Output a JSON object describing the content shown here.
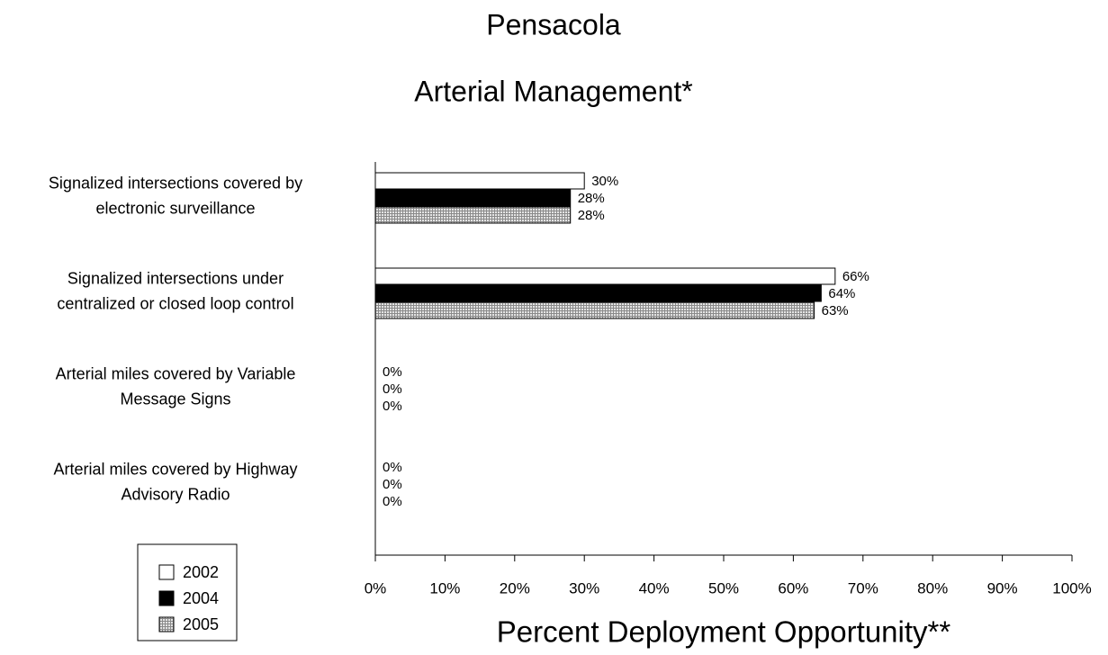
{
  "chart_data": {
    "type": "hbar",
    "title": "Pensacola",
    "subtitle": "Arterial Management*",
    "xlabel": "Percent Deployment Opportunity**",
    "categories": [
      [
        "Signalized intersections covered by",
        "electronic surveillance"
      ],
      [
        "Signalized intersections under",
        "centralized or closed loop control"
      ],
      [
        "Arterial miles covered by Variable",
        "Message Signs"
      ],
      [
        "Arterial miles covered by Highway",
        "Advisory Radio"
      ]
    ],
    "series": [
      {
        "name": "2002",
        "color": "#ffffff",
        "values": [
          30,
          66,
          0,
          0
        ],
        "value_labels": [
          "30%",
          "66%",
          "0%",
          "0%"
        ]
      },
      {
        "name": "2004",
        "color": "#000000",
        "values": [
          28,
          64,
          0,
          0
        ],
        "value_labels": [
          "28%",
          "64%",
          "0%",
          "0%"
        ]
      },
      {
        "name": "2005",
        "color": "#bdbdbd",
        "pattern": "crosshatch",
        "values": [
          28,
          63,
          0,
          0
        ],
        "value_labels": [
          "28%",
          "63%",
          "0%",
          "0%"
        ]
      }
    ],
    "xlim": [
      0,
      100
    ],
    "xticks": [
      {
        "value": 0,
        "label": "0%"
      },
      {
        "value": 10,
        "label": "10%"
      },
      {
        "value": 20,
        "label": "20%"
      },
      {
        "value": 30,
        "label": "30%"
      },
      {
        "value": 40,
        "label": "40%"
      },
      {
        "value": 50,
        "label": "50%"
      },
      {
        "value": 60,
        "label": "60%"
      },
      {
        "value": 70,
        "label": "70%"
      },
      {
        "value": 80,
        "label": "80%"
      },
      {
        "value": 90,
        "label": "90%"
      },
      {
        "value": 100,
        "label": "100%"
      }
    ],
    "legend": "bottom-left"
  }
}
